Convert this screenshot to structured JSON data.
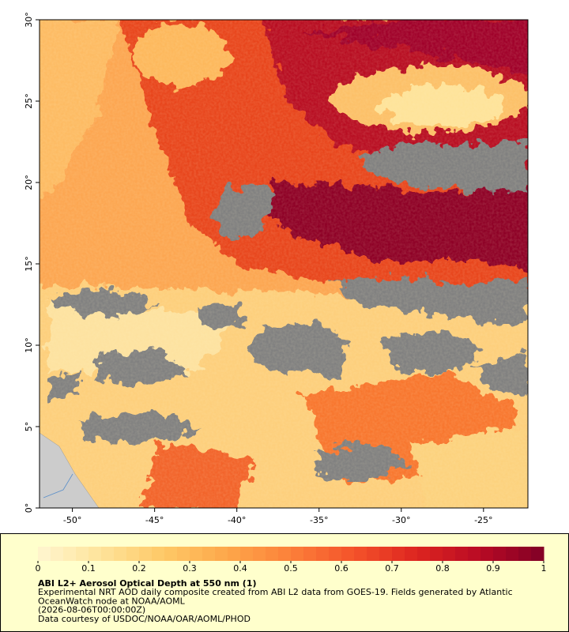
{
  "chart_data": {
    "type": "map",
    "title": "ABI L2+ Aerosol Optical Depth at 550 nm (1)",
    "caption": [
      "Experimental NRT AOD daily composite created from ABI L2 data from GOES-19. Fields generated by Atlantic",
      "OceanWatch node at NOAA/AOML",
      "(2026-08-06T00:00:00Z)",
      "Data courtesy of USDOC/NOAA/OAR/AOML/PHOD"
    ],
    "xlim": [
      -52,
      -22.3
    ],
    "ylim": [
      0,
      30
    ],
    "xticks": [
      {
        "value": -50,
        "label": "-50°"
      },
      {
        "value": -45,
        "label": "-45°"
      },
      {
        "value": -40,
        "label": "-40°"
      },
      {
        "value": -35,
        "label": "-35°"
      },
      {
        "value": -30,
        "label": "-30°"
      },
      {
        "value": -25,
        "label": "-25°"
      }
    ],
    "yticks": [
      {
        "value": 0,
        "label": "0°"
      },
      {
        "value": 5,
        "label": "5°"
      },
      {
        "value": 10,
        "label": "10°"
      },
      {
        "value": 15,
        "label": "15°"
      },
      {
        "value": 20,
        "label": "20°"
      },
      {
        "value": 25,
        "label": "25°"
      },
      {
        "value": 30,
        "label": "30°"
      }
    ],
    "colorbar": {
      "lim": [
        0,
        1
      ],
      "ticks": [
        0,
        0.1,
        0.2,
        0.3,
        0.4,
        0.5,
        0.6,
        0.7,
        0.8,
        0.9,
        1
      ],
      "colors": [
        "#fff6d0",
        "#fee39a",
        "#fec866",
        "#fda74a",
        "#fc8039",
        "#f4522a",
        "#dd2520",
        "#b80a24",
        "#800026"
      ]
    }
  }
}
